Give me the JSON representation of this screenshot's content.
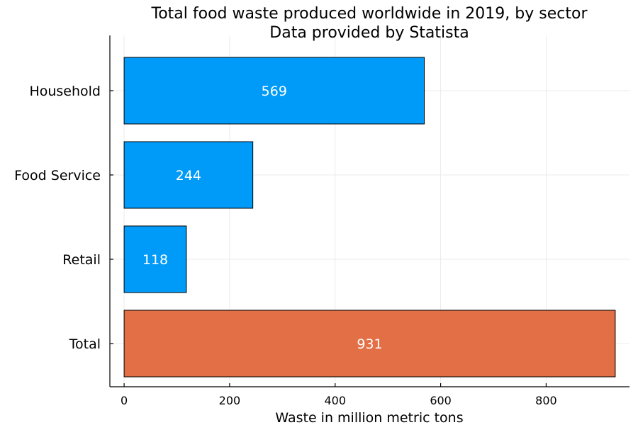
{
  "chart_data": {
    "type": "bar",
    "orientation": "horizontal",
    "title": "Total food waste produced worldwide in 2019, by sector",
    "subtitle": "Data provided by Statista",
    "xlabel": "Waste in million metric tons",
    "ylabel": "",
    "categories": [
      "Household",
      "Food Service",
      "Retail",
      "Total"
    ],
    "values": [
      569,
      244,
      118,
      931
    ],
    "data_labels": [
      "569",
      "244",
      "118",
      "931"
    ],
    "xlim": [
      -27,
      958
    ],
    "xticks": [
      0,
      200,
      400,
      600,
      800
    ],
    "xtick_labels": [
      "0",
      "200",
      "400",
      "600",
      "800"
    ],
    "grid": true,
    "legend": "none",
    "colors": {
      "sector": "#009af9",
      "total": "#e26f46"
    }
  }
}
